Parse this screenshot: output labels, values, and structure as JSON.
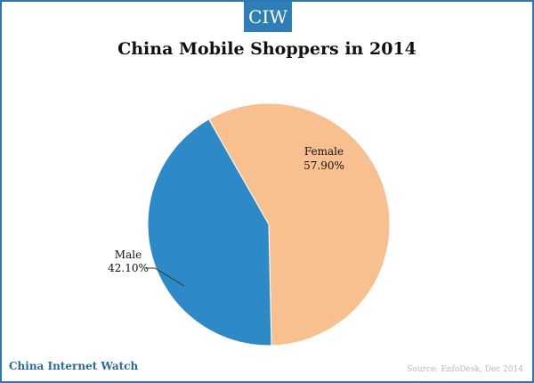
{
  "brand": {
    "badge": "CIW",
    "footer": "China Internet Watch"
  },
  "source": "Source: EnfoDesk, Dec 2014",
  "colors": {
    "female": "#f9c08f",
    "male": "#2d8ac7",
    "frame": "#2f77b4"
  },
  "chart_data": {
    "type": "pie",
    "title": "China Mobile Shoppers in 2014",
    "slices": [
      {
        "label": "Female",
        "value": 57.9,
        "value_label": "57.90%",
        "color": "#f9c08f"
      },
      {
        "label": "Male",
        "value": 42.1,
        "value_label": "42.10%",
        "color": "#2d8ac7"
      }
    ]
  }
}
